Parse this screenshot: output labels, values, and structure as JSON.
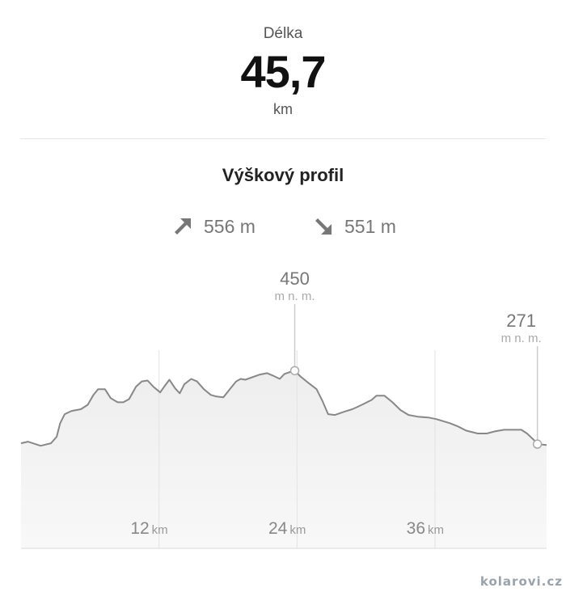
{
  "length": {
    "label": "Délka",
    "value": "45,7",
    "unit": "km"
  },
  "profile": {
    "title": "Výškový profil",
    "ascent": {
      "icon": "arrow-up-right-icon",
      "value": "556 m"
    },
    "descent": {
      "icon": "arrow-down-right-icon",
      "value": "551 m"
    }
  },
  "chart_data": {
    "type": "area",
    "xlabel": "",
    "ylabel": "",
    "xlim": [
      0,
      45.7
    ],
    "ylim": [
      17,
      500
    ],
    "x_ticks": [
      {
        "value": 12,
        "label": "12",
        "unit": "km"
      },
      {
        "value": 24,
        "label": "24",
        "unit": "km"
      },
      {
        "value": 36,
        "label": "36",
        "unit": "km"
      }
    ],
    "annotations": [
      {
        "x": 23.8,
        "y": 450,
        "label": "450",
        "unit": "m n. m."
      },
      {
        "x": 44.9,
        "y": 271,
        "label": "271",
        "unit": "m n. m."
      }
    ],
    "colors": {
      "line": "#888888",
      "fill": "#f2f2f2",
      "grid": "#e3e3e3"
    },
    "series": [
      {
        "x": [
          0,
          0.6,
          1.7,
          2.6,
          3.1,
          3.4,
          3.8,
          4.4,
          5.2,
          5.8,
          6.3,
          6.7,
          7.3,
          7.8,
          8.4,
          8.9,
          9.4,
          10.0,
          10.5,
          11.0,
          11.5,
          12.1,
          12.5,
          12.9,
          13.4,
          13.8,
          14.2,
          14.8,
          15.3,
          15.9,
          16.5,
          17.0,
          17.6,
          18.1,
          18.7,
          19.1,
          19.5,
          20.1,
          20.7,
          21.4,
          21.9,
          22.5,
          22.9,
          23.3,
          23.8,
          24.3,
          25.0,
          25.7,
          26.2,
          26.7,
          27.3,
          28.1,
          28.8,
          29.2,
          29.8,
          30.5,
          30.9,
          31.6,
          32.3,
          33.0,
          33.7,
          34.5,
          35.4,
          36.1,
          37.3,
          38.0,
          38.7,
          39.7,
          40.5,
          41.2,
          42.0,
          43.5,
          44.0,
          44.6,
          44.9,
          45.7
        ],
        "y": [
          273,
          277,
          267,
          273,
          289,
          322,
          344,
          352,
          356,
          367,
          391,
          405,
          405,
          383,
          373,
          373,
          381,
          411,
          424,
          426,
          411,
          397,
          413,
          428,
          407,
          395,
          417,
          430,
          424,
          405,
          391,
          387,
          385,
          403,
          424,
          430,
          428,
          434,
          440,
          444,
          438,
          430,
          442,
          446,
          450,
          436,
          420,
          405,
          377,
          344,
          342,
          350,
          356,
          361,
          369,
          379,
          389,
          389,
          373,
          354,
          342,
          338,
          336,
          332,
          322,
          314,
          304,
          297,
          297,
          302,
          306,
          306,
          297,
          281,
          271,
          269
        ]
      }
    ]
  },
  "watermark": "kolarovi.cz"
}
